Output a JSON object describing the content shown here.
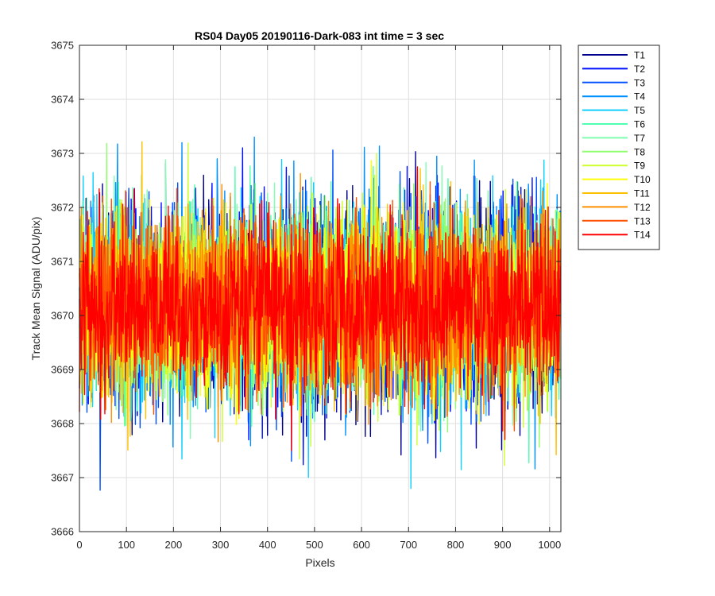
{
  "chart_data": {
    "type": "line",
    "title": "RS04 Day05 20190116-Dark-083 int time = 3 sec",
    "xlabel": "Pixels",
    "ylabel": "Track Mean Signal (ADU/pix)",
    "xlim": [
      0,
      1024
    ],
    "ylim": [
      3666,
      3675
    ],
    "xticks": [
      0,
      100,
      200,
      300,
      400,
      500,
      600,
      700,
      800,
      900,
      1000
    ],
    "yticks": [
      3666,
      3667,
      3668,
      3669,
      3670,
      3671,
      3672,
      3673,
      3674,
      3675
    ],
    "grid": true,
    "legend_position": "outside-top-right",
    "n_points": 1024,
    "mean": 3670.2,
    "std": 0.9,
    "series": [
      {
        "name": "T1",
        "color": "#00008f"
      },
      {
        "name": "T2",
        "color": "#0010ff"
      },
      {
        "name": "T3",
        "color": "#0050ff"
      },
      {
        "name": "T4",
        "color": "#0090ff"
      },
      {
        "name": "T5",
        "color": "#10cfff"
      },
      {
        "name": "T6",
        "color": "#4fffaf"
      },
      {
        "name": "T7",
        "color": "#7fffaf"
      },
      {
        "name": "T8",
        "color": "#8fff6f"
      },
      {
        "name": "T9",
        "color": "#cfff30"
      },
      {
        "name": "T10",
        "color": "#ffff00"
      },
      {
        "name": "T11",
        "color": "#ffc000"
      },
      {
        "name": "T12",
        "color": "#ff9000"
      },
      {
        "name": "T13",
        "color": "#ff5000"
      },
      {
        "name": "T14",
        "color": "#ff0000"
      }
    ]
  }
}
